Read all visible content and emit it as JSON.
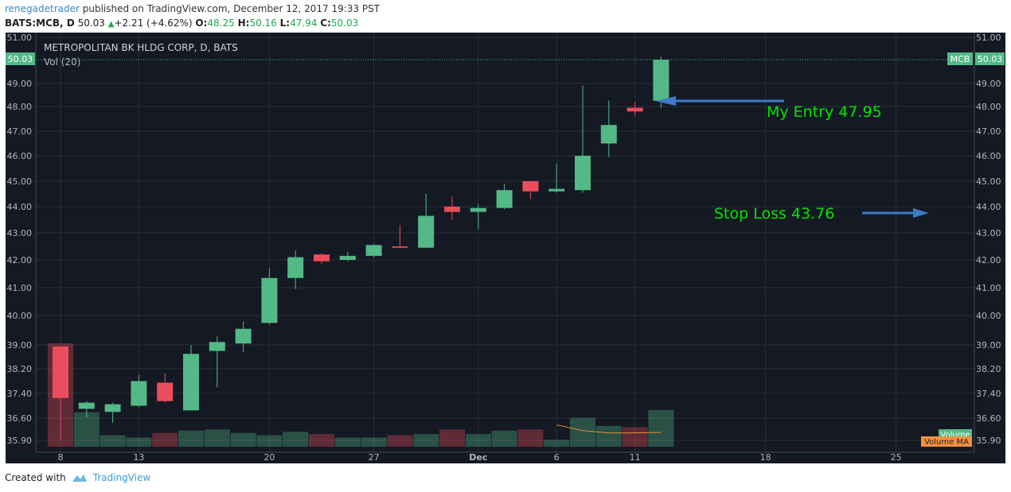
{
  "header": {
    "user": "renegadetrader",
    "published_text": " published on TradingView.com, December 12, 2017 19:33 PST",
    "symbol": "BATS:MCB, D",
    "last": "50.03",
    "change": "+2.21 (+4.62%)",
    "o_label": "O:",
    "o_val": "48.25",
    "h_label": "H:",
    "h_val": "50.16",
    "l_label": "L:",
    "l_val": "47.94",
    "c_label": "C:",
    "c_val": "50.03"
  },
  "legend": {
    "title": "METROPOLITAN BK HLDG CORP, D, BATS",
    "vol": "Vol (20)"
  },
  "price_labels": {
    "last_left": "50.03",
    "ticker_tag": "MCB",
    "last_right": "50.03",
    "volume_tag": "Volume",
    "volume_ma_tag": "Volume MA"
  },
  "annotations": {
    "entry": "My Entry 47.95",
    "stop": "Stop Loss 43.76"
  },
  "footer": {
    "created_with": "Created with",
    "brand": "TradingView"
  },
  "colors": {
    "bg": "#151924",
    "up": "#53b987",
    "down": "#eb4d5c",
    "grid": "#2a2e39",
    "text": "#b2b5be",
    "annotation": "#00e600",
    "arrow": "#3c7bc6"
  },
  "chart_data": {
    "type": "candlestick",
    "title": "METROPOLITAN BK HLDG CORP, D, BATS",
    "y_ticks": [
      "51.00",
      "49.00",
      "48.00",
      "47.00",
      "46.00",
      "45.00",
      "44.00",
      "43.00",
      "42.00",
      "41.00",
      "40.00",
      "39.00",
      "38.20",
      "37.40",
      "36.60",
      "35.90"
    ],
    "x_labels": [
      {
        "label": "8",
        "slot": 0
      },
      {
        "label": "13",
        "slot": 3
      },
      {
        "label": "20",
        "slot": 8
      },
      {
        "label": "27",
        "slot": 12
      },
      {
        "label": "Dec",
        "slot": 16
      },
      {
        "label": "6",
        "slot": 19
      },
      {
        "label": "11",
        "slot": 22
      },
      {
        "label": "18",
        "slot": 27
      },
      {
        "label": "25",
        "slot": 32
      }
    ],
    "candles": [
      {
        "o": 38.95,
        "h": 38.95,
        "l": 35.92,
        "c": 37.25
      },
      {
        "o": 36.9,
        "h": 37.15,
        "l": 36.62,
        "c": 37.1
      },
      {
        "o": 36.8,
        "h": 37.1,
        "l": 36.45,
        "c": 37.05
      },
      {
        "o": 37.0,
        "h": 38.0,
        "l": 36.95,
        "c": 37.8
      },
      {
        "o": 37.75,
        "h": 38.05,
        "l": 37.1,
        "c": 37.15
      },
      {
        "o": 36.85,
        "h": 39.0,
        "l": 36.85,
        "c": 38.7
      },
      {
        "o": 38.8,
        "h": 39.3,
        "l": 37.6,
        "c": 39.1
      },
      {
        "o": 39.05,
        "h": 39.8,
        "l": 38.75,
        "c": 39.55
      },
      {
        "o": 39.75,
        "h": 41.7,
        "l": 39.7,
        "c": 41.35
      },
      {
        "o": 41.35,
        "h": 42.35,
        "l": 40.95,
        "c": 42.1
      },
      {
        "o": 42.2,
        "h": 42.25,
        "l": 41.85,
        "c": 41.95
      },
      {
        "o": 42.0,
        "h": 42.3,
        "l": 41.95,
        "c": 42.15
      },
      {
        "o": 42.15,
        "h": 42.6,
        "l": 42.1,
        "c": 42.55
      },
      {
        "o": 42.5,
        "h": 43.3,
        "l": 42.45,
        "c": 42.45
      },
      {
        "o": 42.45,
        "h": 44.5,
        "l": 42.45,
        "c": 43.65
      },
      {
        "o": 44.0,
        "h": 44.4,
        "l": 43.5,
        "c": 43.8
      },
      {
        "o": 43.8,
        "h": 44.1,
        "l": 43.15,
        "c": 43.95
      },
      {
        "o": 43.95,
        "h": 44.9,
        "l": 43.9,
        "c": 44.65
      },
      {
        "o": 45.0,
        "h": 45.0,
        "l": 44.3,
        "c": 44.6
      },
      {
        "o": 44.6,
        "h": 45.7,
        "l": 44.55,
        "c": 44.7
      },
      {
        "o": 44.65,
        "h": 48.9,
        "l": 44.55,
        "c": 46.0
      },
      {
        "o": 46.5,
        "h": 48.25,
        "l": 45.95,
        "c": 47.25
      },
      {
        "o": 47.95,
        "h": 48.2,
        "l": 47.65,
        "c": 47.8
      },
      {
        "o": 48.25,
        "h": 50.16,
        "l": 47.94,
        "c": 50.03
      }
    ],
    "volume": [
      9,
      3,
      1,
      0.8,
      1.2,
      1.4,
      1.5,
      1.2,
      1,
      1.3,
      1.1,
      0.8,
      0.8,
      1,
      1.1,
      1.5,
      1.1,
      1.4,
      1.5,
      0.6,
      2.5,
      1.8,
      1.7,
      3.2
    ],
    "volume_ma": [
      null,
      null,
      null,
      null,
      null,
      null,
      null,
      null,
      null,
      null,
      null,
      null,
      null,
      null,
      null,
      null,
      null,
      null,
      null,
      1.9,
      1.4,
      1.2,
      1.2,
      1.25
    ]
  }
}
